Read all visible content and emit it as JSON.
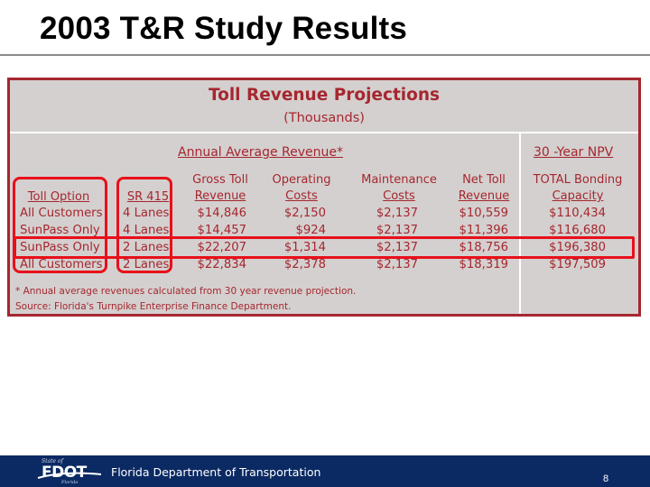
{
  "slide": {
    "title": "2003 T&R Study Results",
    "page_number": "8"
  },
  "table": {
    "title": "Toll Revenue Projections",
    "subtitle": "(Thousands)",
    "section_left": "Annual Average Revenue*",
    "section_right": "30 -Year NPV",
    "headers": {
      "option": "Toll Option",
      "sr415": "SR 415",
      "gross": [
        "Gross Toll",
        "Revenue"
      ],
      "operating": [
        "Operating",
        "Costs"
      ],
      "maintenance": [
        "Maintenance",
        "Costs"
      ],
      "net": [
        "Net Toll",
        "Revenue"
      ],
      "bonding": [
        "TOTAL Bonding",
        "Capacity"
      ]
    },
    "rows": [
      {
        "option": "All Customers",
        "sr415": "4 Lanes",
        "gross": "$14,846",
        "operating": "$2,150",
        "maintenance": "$2,137",
        "net": "$10,559",
        "bonding": "$110,434"
      },
      {
        "option": "SunPass Only",
        "sr415": "4 Lanes",
        "gross": "$14,457",
        "operating": "$924",
        "maintenance": "$2,137",
        "net": "$11,396",
        "bonding": "$116,680"
      },
      {
        "option": "SunPass Only",
        "sr415": "2 Lanes",
        "gross": "$22,207",
        "operating": "$1,314",
        "maintenance": "$2,137",
        "net": "$18,756",
        "bonding": "$196,380"
      },
      {
        "option": "All Customers",
        "sr415": "2 Lanes",
        "gross": "$22,834",
        "operating": "$2,378",
        "maintenance": "$2,137",
        "net": "$18,319",
        "bonding": "$197,509"
      }
    ],
    "footnote": "* Annual average revenues calculated from 30 year revenue projection.",
    "source": "Source:  Florida's Turnpike Enterprise Finance Department.",
    "colors": {
      "text": "#a5272f",
      "background": "#d4d0cf",
      "highlight": "#e8101a"
    }
  },
  "footer": {
    "logo_top": "State of",
    "logo_main": "FDOT",
    "logo_bottom": "Florida",
    "org_name": "Florida Department of Transportation",
    "bar_color": "#0b2a63"
  }
}
